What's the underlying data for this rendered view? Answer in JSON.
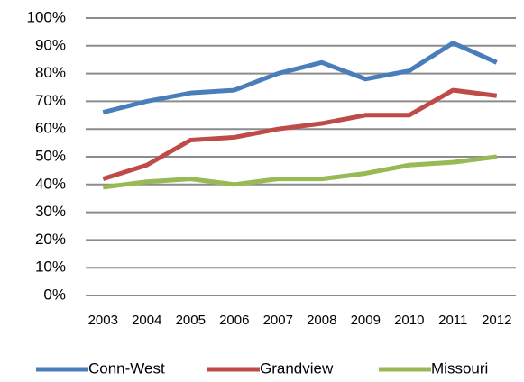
{
  "chart_data": {
    "type": "line",
    "categories": [
      "2003",
      "2004",
      "2005",
      "2006",
      "2007",
      "2008",
      "2009",
      "2010",
      "2011",
      "2012"
    ],
    "series": [
      {
        "name": "Conn-West",
        "color": "#4a7ebb",
        "values": [
          66,
          70,
          73,
          74,
          80,
          84,
          78,
          81,
          91,
          84
        ]
      },
      {
        "name": "Grandview",
        "color": "#be4b48",
        "values": [
          42,
          47,
          56,
          57,
          60,
          62,
          65,
          65,
          74,
          72
        ]
      },
      {
        "name": "Missouri",
        "color": "#98b954",
        "values": [
          39,
          41,
          42,
          40,
          42,
          42,
          44,
          47,
          48,
          50
        ]
      }
    ],
    "ylim": [
      0,
      100
    ],
    "yticks": [
      {
        "value": 0,
        "label": "0%"
      },
      {
        "value": 10,
        "label": "10%"
      },
      {
        "value": 20,
        "label": "20%"
      },
      {
        "value": 30,
        "label": "30%"
      },
      {
        "value": 40,
        "label": "40%"
      },
      {
        "value": 50,
        "label": "50%"
      },
      {
        "value": 60,
        "label": "60%"
      },
      {
        "value": 70,
        "label": "70%"
      },
      {
        "value": 80,
        "label": "80%"
      },
      {
        "value": 90,
        "label": "90%"
      },
      {
        "value": 100,
        "label": "100%"
      }
    ],
    "grid": true,
    "legend": "bottom"
  }
}
